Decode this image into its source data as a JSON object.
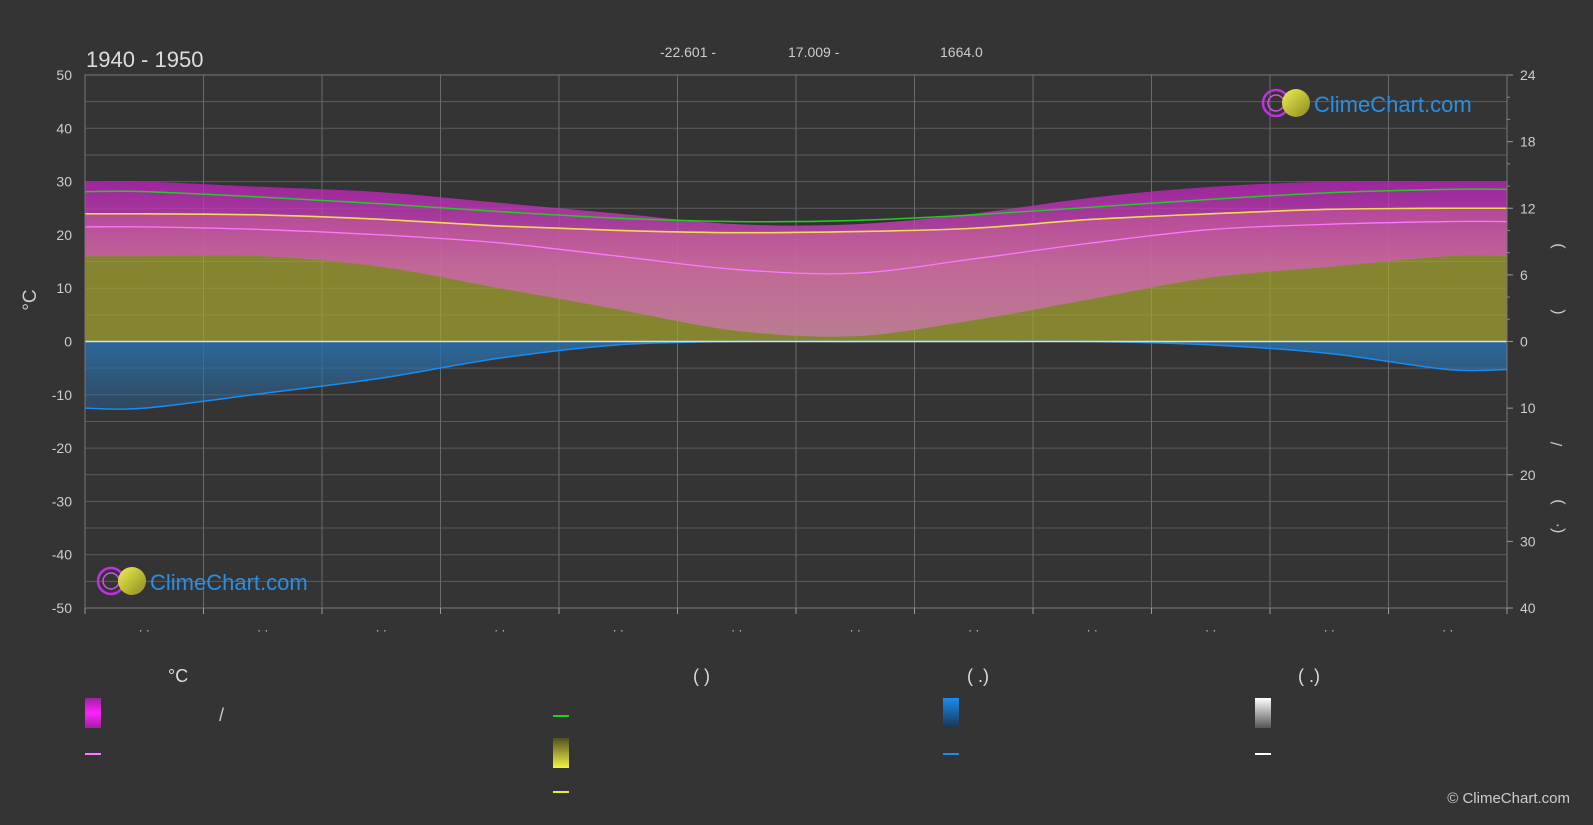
{
  "header": {
    "period": "1940 - 1950",
    "latitude": "-22.601 -",
    "longitude": "17.009 -",
    "elevation": "1664.0",
    "copyright": "© ClimeChart.com"
  },
  "logo": {
    "text": "ClimeChart.com"
  },
  "axes": {
    "left_label": "°C",
    "left_ticks": [
      "50",
      "40",
      "30",
      "20",
      "10",
      "0",
      "-10",
      "-20",
      "-30",
      "-40",
      "-50"
    ],
    "right_top_ticks": [
      "24",
      "18",
      "12",
      "6",
      "0"
    ],
    "right_bottom_ticks": [
      "0",
      "10",
      "20",
      "30",
      "40"
    ],
    "right_glyphs": [
      ")",
      "(",
      "/",
      ")",
      "(·"
    ],
    "month_tick_label": "· ·"
  },
  "legend": {
    "col1": {
      "header": "°C",
      "item1": "/"
    },
    "col2": {
      "header": "(          )"
    },
    "col3": {
      "header": "(   .)"
    },
    "col4": {
      "header": "(   .)"
    }
  },
  "colors": {
    "background": "#343434",
    "grid": "#5c5c5c",
    "axis_text": "#cccccc",
    "temp_range": "#c020c0",
    "mean_temp": "#ff77ff",
    "daylight": "#22cc22",
    "sunshine_fill": "#a8a830",
    "sunshine_line": "#f0dc50",
    "rain": "#2a6ea8",
    "rain_line": "#1a8cf0",
    "logo_text": "#2b8fe0"
  },
  "chart_data": {
    "type": "area",
    "title": "1940 - 1950",
    "ylabel": "°C",
    "ylim": [
      -50,
      50
    ],
    "y2_top_lim": [
      0,
      24
    ],
    "y2_bottom_lim": [
      0,
      40
    ],
    "months": 12,
    "grid": true,
    "x": [
      0.5,
      1.5,
      2.5,
      3.5,
      4.5,
      5.5,
      6.5,
      7.5,
      8.5,
      9.5,
      10.5,
      11.5
    ],
    "series": [
      {
        "kind": "temp_max",
        "values": [
          30,
          29,
          28,
          26,
          24,
          22,
          22,
          24,
          27,
          29,
          30,
          30
        ]
      },
      {
        "kind": "temp_min",
        "values": [
          16,
          16,
          14,
          10,
          6,
          2,
          1,
          4,
          8,
          12,
          14,
          16
        ]
      },
      {
        "kind": "temp_mean",
        "values": [
          21.5,
          21,
          20,
          18.5,
          16,
          13.5,
          12.8,
          15.5,
          18.5,
          21,
          22,
          22.5
        ]
      },
      {
        "kind": "daylight_hours",
        "values": [
          13.5,
          13,
          12.4,
          11.7,
          11.1,
          10.8,
          10.9,
          11.4,
          12.1,
          12.8,
          13.4,
          13.7
        ]
      },
      {
        "kind": "sunshine_hours",
        "values": [
          11.5,
          11.4,
          11.0,
          10.4,
          10.0,
          9.8,
          9.9,
          10.2,
          11.0,
          11.5,
          11.9,
          12.0
        ]
      },
      {
        "kind": "precip_mm",
        "values": [
          10,
          7.8,
          5.5,
          2.5,
          0.5,
          0,
          0,
          0,
          0,
          0.5,
          1.8,
          4.2
        ]
      }
    ]
  }
}
